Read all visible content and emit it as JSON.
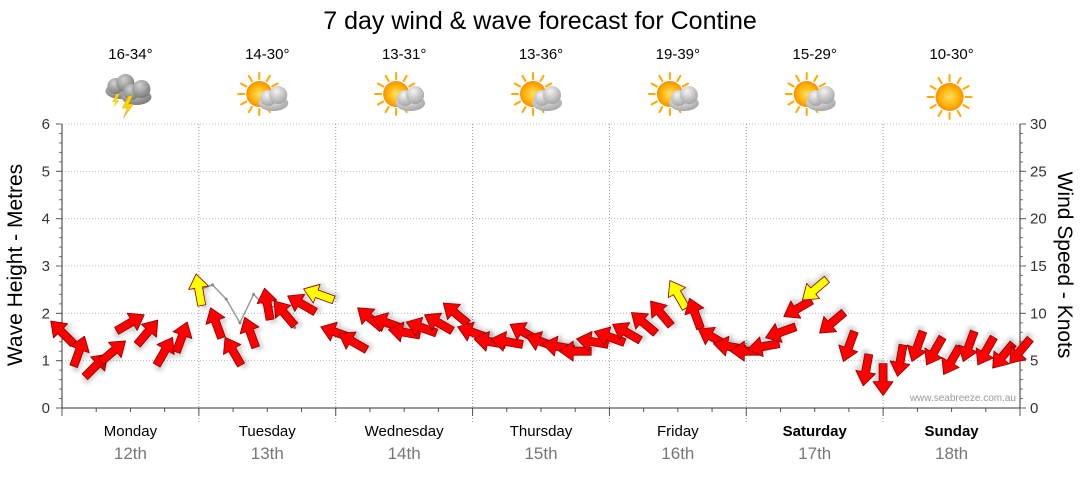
{
  "chart_data": {
    "type": "line",
    "title": "7 day wind & wave forecast for Contine",
    "ylabel_left": "Wave Height - Metres",
    "ylabel_right": "Wind Speed - Knots",
    "ylim_left": [
      0,
      6
    ],
    "ylim_right": [
      0,
      30
    ],
    "yticks_left": [
      "0",
      "1",
      "2",
      "3",
      "4",
      "5",
      "6"
    ],
    "yticks_right": [
      "0",
      "5",
      "10",
      "15",
      "20",
      "25",
      "30"
    ],
    "grid": true,
    "days": [
      {
        "name": "Monday",
        "date": "12th",
        "bold": false,
        "temp": "16-34°",
        "icon": "thunderstorm-icon"
      },
      {
        "name": "Tuesday",
        "date": "13th",
        "bold": false,
        "temp": "14-30°",
        "icon": "partly-cloudy-icon"
      },
      {
        "name": "Wednesday",
        "date": "14th",
        "bold": false,
        "temp": "13-31°",
        "icon": "partly-cloudy-icon"
      },
      {
        "name": "Thursday",
        "date": "15th",
        "bold": false,
        "temp": "13-36°",
        "icon": "partly-cloudy-icon"
      },
      {
        "name": "Friday",
        "date": "16th",
        "bold": false,
        "temp": "19-39°",
        "icon": "partly-cloudy-icon"
      },
      {
        "name": "Saturday",
        "date": "17th",
        "bold": true,
        "temp": "15-29°",
        "icon": "partly-cloudy-icon"
      },
      {
        "name": "Sunday",
        "date": "18th",
        "bold": true,
        "temp": "10-30°",
        "icon": "sunny-icon"
      }
    ],
    "series": [
      {
        "name": "Wind Speed - Knots",
        "x_unit": "day",
        "x": [
          0.0,
          0.125,
          0.25,
          0.375,
          0.5,
          0.625,
          0.75,
          0.875,
          1.0,
          1.125,
          1.25,
          1.375,
          1.5,
          1.625,
          1.75,
          1.875,
          2.0,
          2.125,
          2.25,
          2.375,
          2.5,
          2.625,
          2.75,
          2.875,
          3.0,
          3.125,
          3.25,
          3.375,
          3.5,
          3.625,
          3.75,
          3.875,
          4.0,
          4.125,
          4.25,
          4.375,
          4.5,
          4.625,
          4.75,
          4.875,
          5.0,
          5.125,
          5.25,
          5.375,
          5.5,
          5.625,
          5.75,
          5.875,
          6.0,
          6.125,
          6.25,
          6.375,
          6.5,
          6.625,
          6.75,
          6.875,
          7.0
        ],
        "values": [
          8,
          6,
          4.5,
          6,
          9,
          8,
          6,
          7.5,
          12.5,
          9,
          6,
          8,
          11,
          10,
          11,
          12,
          8,
          7,
          9.5,
          9,
          8,
          8.5,
          9,
          10,
          8,
          7,
          7,
          8,
          7,
          6.5,
          6,
          7,
          7.5,
          8,
          9,
          10,
          12,
          10,
          7.5,
          6.5,
          6,
          6.5,
          8,
          10.5,
          12.5,
          9,
          6.5,
          4,
          3,
          5,
          6.5,
          6,
          5,
          6.5,
          6,
          5.5,
          6
        ],
        "color_map": [
          {
            "min": 0,
            "max": 12,
            "color": "#ff0000"
          },
          {
            "min": 12,
            "max": 30,
            "color": "#ffff00"
          }
        ],
        "directions_deg": [
          315,
          20,
          45,
          50,
          60,
          40,
          30,
          20,
          350,
          340,
          330,
          340,
          350,
          320,
          300,
          290,
          290,
          300,
          310,
          290,
          280,
          290,
          300,
          310,
          290,
          280,
          280,
          300,
          290,
          280,
          270,
          280,
          290,
          300,
          310,
          320,
          330,
          340,
          300,
          280,
          270,
          260,
          250,
          240,
          230,
          230,
          200,
          190,
          180,
          190,
          200,
          210,
          210,
          200,
          210,
          220,
          220
        ]
      },
      {
        "name": "Wave Height - Metres",
        "x_unit": "day",
        "x": [
          1.0,
          1.1,
          1.2,
          1.3,
          1.4,
          1.5,
          1.6,
          1.7
        ],
        "values": [
          2.5,
          2.6,
          2.3,
          1.8,
          2.4,
          2.1,
          2.2,
          1.7
        ]
      }
    ]
  },
  "watermark": "www.seabreeze.com.au"
}
